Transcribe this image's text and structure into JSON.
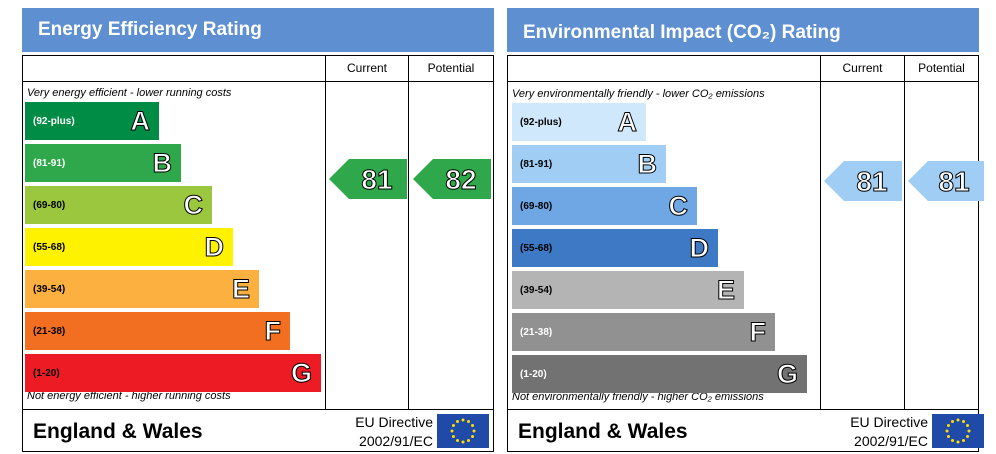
{
  "chart_data": [
    {
      "type": "bar",
      "title": "Energy Efficiency Rating",
      "columns": [
        "Current",
        "Potential"
      ],
      "top_caption": "Very energy efficient - lower running costs",
      "bottom_caption": "Not energy efficient - higher running costs",
      "bands": [
        {
          "range": "(92-plus)",
          "letter": "A",
          "color": "#008c44",
          "text_color": "#ffffff"
        },
        {
          "range": "(81-91)",
          "letter": "B",
          "color": "#2ea84a",
          "text_color": "#ffffff"
        },
        {
          "range": "(69-80)",
          "letter": "C",
          "color": "#9bc73e",
          "text_color": "#000000"
        },
        {
          "range": "(55-68)",
          "letter": "D",
          "color": "#fff200",
          "text_color": "#000000"
        },
        {
          "range": "(39-54)",
          "letter": "E",
          "color": "#fbb040",
          "text_color": "#000000"
        },
        {
          "range": "(21-38)",
          "letter": "F",
          "color": "#f26f22",
          "text_color": "#000000"
        },
        {
          "range": "(1-20)",
          "letter": "G",
          "color": "#ed1c24",
          "text_color": "#000000"
        }
      ],
      "current": {
        "value": 81,
        "color": "#2ea84a"
      },
      "potential": {
        "value": 82,
        "color": "#2ea84a"
      },
      "footer": {
        "region": "England & Wales",
        "directive_line1": "EU Directive",
        "directive_line2": "2002/91/EC"
      }
    },
    {
      "type": "bar",
      "title": "Environmental Impact (CO₂) Rating",
      "columns": [
        "Current",
        "Potential"
      ],
      "top_caption": "Very environmentally friendly - lower CO₂ emissions",
      "bottom_caption": "Not environmentally friendly - higher CO₂ emissions",
      "bands": [
        {
          "range": "(92-plus)",
          "letter": "A",
          "color": "#cfe8fb",
          "text_color": "#000000"
        },
        {
          "range": "(81-91)",
          "letter": "B",
          "color": "#9fcdf3",
          "text_color": "#000000"
        },
        {
          "range": "(69-80)",
          "letter": "C",
          "color": "#6ea7e3",
          "text_color": "#000000"
        },
        {
          "range": "(55-68)",
          "letter": "D",
          "color": "#3e79c5",
          "text_color": "#000000"
        },
        {
          "range": "(39-54)",
          "letter": "E",
          "color": "#b4b4b4",
          "text_color": "#000000"
        },
        {
          "range": "(21-38)",
          "letter": "F",
          "color": "#919191",
          "text_color": "#ffffff"
        },
        {
          "range": "(1-20)",
          "letter": "G",
          "color": "#727272",
          "text_color": "#ffffff"
        }
      ],
      "current": {
        "value": 81,
        "color": "#9fcdf3"
      },
      "potential": {
        "value": 81,
        "color": "#9fcdf3"
      },
      "footer": {
        "region": "England & Wales",
        "directive_line1": "EU Directive",
        "directive_line2": "2002/91/EC"
      }
    }
  ]
}
